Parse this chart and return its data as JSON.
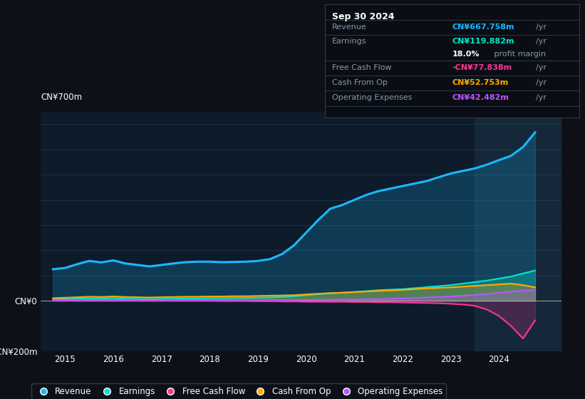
{
  "background_color": "#0d1117",
  "plot_bg_color": "#0d1b2a",
  "colors": {
    "revenue": "#1ab8ff",
    "earnings": "#00e5cc",
    "free_cash_flow": "#ff3399",
    "cash_from_op": "#ffaa00",
    "operating_expenses": "#bb55ff"
  },
  "info_box": {
    "date": "Sep 30 2024",
    "revenue_val": "CN¥667.758m",
    "earnings_val": "CN¥119.882m",
    "profit_margin": "18.0%",
    "fcf_val": "-CN¥77.838m",
    "cash_from_op_val": "CN¥52.753m",
    "op_exp_val": "CN¥42.482m"
  },
  "years": [
    2014.75,
    2015.0,
    2015.25,
    2015.5,
    2015.75,
    2016.0,
    2016.25,
    2016.5,
    2016.75,
    2017.0,
    2017.25,
    2017.5,
    2017.75,
    2018.0,
    2018.25,
    2018.5,
    2018.75,
    2019.0,
    2019.25,
    2019.5,
    2019.75,
    2020.0,
    2020.25,
    2020.5,
    2020.75,
    2021.0,
    2021.25,
    2021.5,
    2021.75,
    2022.0,
    2022.25,
    2022.5,
    2022.75,
    2023.0,
    2023.25,
    2023.5,
    2023.75,
    2024.0,
    2024.25,
    2024.5,
    2024.75
  ],
  "revenue": [
    125,
    130,
    145,
    158,
    152,
    160,
    148,
    142,
    136,
    142,
    148,
    153,
    155,
    155,
    153,
    154,
    155,
    158,
    165,
    185,
    220,
    270,
    320,
    365,
    380,
    400,
    420,
    435,
    445,
    455,
    465,
    475,
    490,
    505,
    515,
    525,
    540,
    558,
    575,
    610,
    668
  ],
  "earnings": [
    5,
    6,
    8,
    9,
    8,
    10,
    8,
    7,
    6,
    7,
    8,
    9,
    9,
    10,
    10,
    11,
    11,
    12,
    13,
    15,
    18,
    22,
    26,
    30,
    32,
    35,
    38,
    42,
    44,
    46,
    50,
    54,
    58,
    62,
    68,
    74,
    80,
    88,
    96,
    108,
    120
  ],
  "fcf": [
    0,
    0,
    1,
    1,
    1,
    1,
    1,
    0,
    0,
    0,
    0,
    0,
    0,
    0,
    -1,
    -1,
    -1,
    -2,
    -2,
    -3,
    -3,
    -4,
    -4,
    -4,
    -4,
    -5,
    -5,
    -6,
    -6,
    -7,
    -8,
    -9,
    -10,
    -12,
    -15,
    -20,
    -35,
    -60,
    -100,
    -150,
    -78
  ],
  "cash_op": [
    10,
    12,
    14,
    16,
    15,
    17,
    15,
    14,
    13,
    14,
    15,
    16,
    16,
    17,
    17,
    18,
    18,
    19,
    20,
    21,
    22,
    25,
    28,
    30,
    32,
    34,
    37,
    39,
    41,
    43,
    46,
    49,
    51,
    53,
    56,
    59,
    62,
    65,
    68,
    62,
    53
  ],
  "opex": [
    2,
    2,
    2,
    3,
    3,
    3,
    3,
    2,
    2,
    2,
    2,
    3,
    3,
    3,
    3,
    3,
    3,
    3,
    3,
    3,
    3,
    3,
    4,
    4,
    5,
    5,
    6,
    7,
    8,
    9,
    11,
    13,
    15,
    17,
    20,
    23,
    27,
    32,
    36,
    40,
    42
  ]
}
